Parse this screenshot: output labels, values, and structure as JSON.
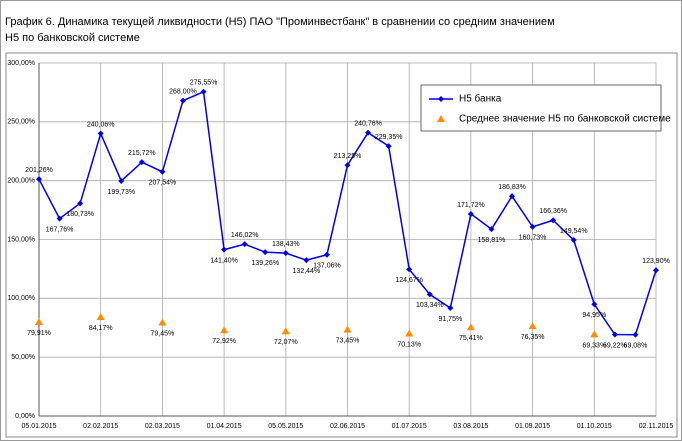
{
  "chart_data": {
    "type": "line",
    "title": "График 6.  Динамика текущей ликвидности (Н5) ПАО \"Проминвестбанк\" в сравнении со средним значением Н5 по банковской системе",
    "categories": [
      "05.01.2015",
      null,
      null,
      "02.02.2015",
      null,
      null,
      "02.03.2015",
      null,
      null,
      "01.04.2015",
      null,
      null,
      "05.05.2015",
      null,
      null,
      "02.06.2015",
      null,
      null,
      "01.07.2015",
      null,
      null,
      "03.08.2015",
      null,
      null,
      "01.09.2015",
      null,
      null,
      "01.10.2015",
      null,
      null,
      "02.11.2015"
    ],
    "series": [
      {
        "name": "Н5 банка",
        "color": "#0000e6",
        "marker": "diamond",
        "values": [
          201.26,
          167.76,
          180.73,
          240.06,
          199.73,
          215.72,
          207.54,
          268.0,
          275.55,
          141.4,
          146.02,
          139.26,
          138.43,
          132.44,
          137.06,
          213.25,
          240.76,
          229.35,
          124.67,
          103.34,
          91.75,
          171.72,
          158.81,
          186.83,
          160.73,
          166.36,
          149.54,
          94.95,
          69.22,
          69.08,
          123.9
        ],
        "value_labels": [
          "201,26%",
          "167,76%",
          "180,73%",
          "240,06%",
          "199,73%",
          "215,72%",
          "207,54%",
          "268,00%",
          "275,55%",
          "141,40%",
          "146,02%",
          "139,26%",
          "138,43%",
          "132,44%",
          "137,06%",
          "213,25%",
          "240,76%",
          "229,35%",
          "124,67%",
          "103,34%",
          "91,75%",
          "171,72%",
          "158,81%",
          "186,83%",
          "160,73%",
          "166,36%",
          "149,54%",
          "94,95%",
          "69,22%",
          "69,08%",
          "123,90%"
        ]
      },
      {
        "name": "Среднее значение Н5 по банковской системе",
        "color": "#ff8c00",
        "marker": "triangle",
        "values": [
          79.91,
          null,
          null,
          84.17,
          null,
          null,
          79.45,
          null,
          null,
          72.92,
          null,
          null,
          72.07,
          null,
          null,
          73.45,
          null,
          null,
          70.13,
          null,
          null,
          75.41,
          null,
          null,
          76.35,
          null,
          null,
          69.33,
          null,
          null,
          null
        ],
        "value_labels": [
          "79,91%",
          null,
          null,
          "84,17%",
          null,
          null,
          "79,45%",
          null,
          null,
          "72,92%",
          null,
          null,
          "72,07%",
          null,
          null,
          "73,45%",
          null,
          null,
          "70,13%",
          null,
          null,
          "75,41%",
          null,
          null,
          "76,35%",
          null,
          null,
          "69,33%",
          null,
          null,
          null
        ]
      }
    ],
    "ylim": [
      0,
      300
    ],
    "yticks": [
      {
        "value": 0,
        "label": "0,00%"
      },
      {
        "value": 50,
        "label": "50,00%"
      },
      {
        "value": 100,
        "label": "100,00%"
      },
      {
        "value": 150,
        "label": "150,00%"
      },
      {
        "value": 200,
        "label": "200,00%"
      },
      {
        "value": 250,
        "label": "250,00%"
      },
      {
        "value": 300,
        "label": "300,00%"
      }
    ],
    "grid": true
  }
}
